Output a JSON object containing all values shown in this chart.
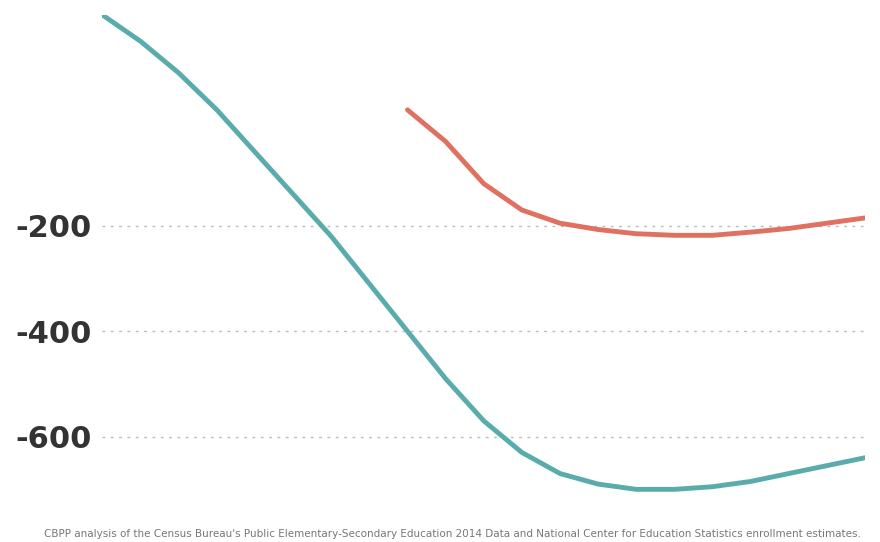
{
  "teal_x": [
    0.0,
    0.05,
    0.1,
    0.15,
    0.2,
    0.25,
    0.3,
    0.35,
    0.4,
    0.45,
    0.5,
    0.55,
    0.6,
    0.65,
    0.7,
    0.75,
    0.8,
    0.85,
    0.9,
    0.95,
    1.0
  ],
  "teal_y": [
    200,
    150,
    90,
    20,
    -60,
    -140,
    -220,
    -310,
    -400,
    -490,
    -570,
    -630,
    -670,
    -690,
    -700,
    -700,
    -695,
    -685,
    -670,
    -655,
    -640
  ],
  "coral_x": [
    0.4,
    0.45,
    0.5,
    0.55,
    0.6,
    0.65,
    0.7,
    0.75,
    0.8,
    0.85,
    0.9,
    0.95,
    1.0
  ],
  "coral_y": [
    20,
    -40,
    -120,
    -170,
    -195,
    -207,
    -215,
    -218,
    -218,
    -212,
    -205,
    -195,
    -185
  ],
  "teal_color": "#5aacac",
  "coral_color": "#e07060",
  "background_color": "#ffffff",
  "grid_color": "#bbbbbb",
  "yticks": [
    -200,
    -400,
    -600
  ],
  "ylim": [
    -720,
    200
  ],
  "xlim": [
    0.0,
    1.0
  ],
  "linewidth": 3.5,
  "tick_fontsize": 22,
  "tick_color": "#333333",
  "source_text": "CBPP analysis of the Census Bureau's Public Elementary-Secondary Education 2014 Data and National Center for Education Statistics enrollment estimates."
}
